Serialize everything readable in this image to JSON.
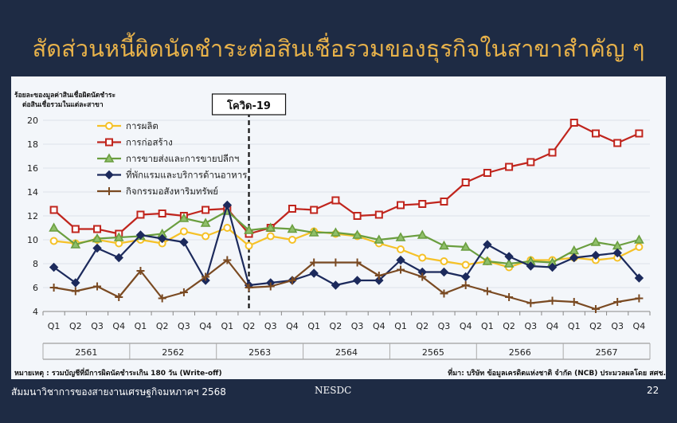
{
  "slide": {
    "title": "สัดส่วนหนี้ผิดนัดชำระต่อสินเชื่อรวมของธุรกิจในสาขาสำคัญ ๆ",
    "footer_left": "สัมมนาวิชาการของสายงานเศรษฐกิจมหภาคฯ 2568",
    "footer_center": "NESDC",
    "page_number": "22",
    "note": "หมายเหตุ : รวมบัญชีที่มีการผิดนัดชำระเกิน 180 วัน (Write-off)",
    "source": "ที่มา: บริษัท ข้อมูลเครดิตแห่งชาติ จำกัด (NCB) ประมวลผลโดย สศช."
  },
  "colors": {
    "background": "#1e2b44",
    "title": "#e8b24a",
    "panel": "#f3f6fa",
    "grid": "#dde3ea"
  },
  "chart_data": {
    "type": "line",
    "ylabel_lines": [
      "ร้อยละของมูลค่าสินเชื่อผิดนัดชำระ",
      "ต่อสินเชื่อรวมในแต่ละสาขา"
    ],
    "ylim": [
      4,
      20
    ],
    "yticks": [
      4,
      6,
      8,
      10,
      12,
      14,
      16,
      18,
      20
    ],
    "grid": true,
    "legend_position": "top-left",
    "quarters": [
      "Q1",
      "Q2",
      "Q3",
      "Q4",
      "Q1",
      "Q2",
      "Q3",
      "Q4",
      "Q1",
      "Q2",
      "Q3",
      "Q4",
      "Q1",
      "Q2",
      "Q3",
      "Q4",
      "Q1",
      "Q2",
      "Q3",
      "Q4",
      "Q1",
      "Q2",
      "Q3",
      "Q4",
      "Q1",
      "Q2",
      "Q3",
      "Q4"
    ],
    "years": [
      "2561",
      "2562",
      "2563",
      "2564",
      "2565",
      "2566",
      "2567"
    ],
    "annotation": {
      "label": "โควิด-19",
      "after_index": 9
    },
    "series": [
      {
        "name": "การผลิต",
        "color": "#f5c127",
        "marker": "circle",
        "values": [
          9.9,
          9.7,
          10.0,
          9.7,
          10.0,
          9.7,
          10.7,
          10.3,
          11.0,
          9.5,
          10.3,
          10.0,
          10.7,
          10.5,
          10.3,
          9.7,
          9.2,
          8.5,
          8.2,
          7.9,
          8.2,
          7.7,
          8.3,
          8.3,
          8.5,
          8.3,
          8.5,
          9.4
        ]
      },
      {
        "name": "การก่อสร้าง",
        "color": "#c0251d",
        "marker": "square",
        "values": [
          12.5,
          10.9,
          10.9,
          10.5,
          12.1,
          12.2,
          12.0,
          12.5,
          12.6,
          10.5,
          11.0,
          12.6,
          12.5,
          13.3,
          12.0,
          12.1,
          12.9,
          13.0,
          13.2,
          14.8,
          15.6,
          16.1,
          16.5,
          17.3,
          19.8,
          18.9,
          18.1,
          18.9
        ]
      },
      {
        "name": "การขายส่งและการขายปลีกฯ",
        "color": "#6a9e3f",
        "marker": "triangle",
        "values": [
          11.0,
          9.6,
          10.1,
          10.2,
          10.3,
          10.5,
          11.8,
          11.4,
          12.4,
          10.8,
          11.0,
          10.9,
          10.6,
          10.6,
          10.4,
          10.0,
          10.2,
          10.4,
          9.5,
          9.4,
          8.2,
          8.0,
          8.2,
          8.1,
          9.1,
          9.8,
          9.5,
          10.0
        ]
      },
      {
        "name": "ที่พักแรมและบริการด้านอาหาร",
        "color": "#1c2a5c",
        "marker": "diamond",
        "values": [
          7.7,
          6.4,
          9.3,
          8.5,
          10.4,
          10.1,
          9.8,
          6.6,
          12.9,
          6.2,
          6.4,
          6.6,
          7.2,
          6.2,
          6.6,
          6.6,
          8.3,
          7.3,
          7.3,
          6.9,
          9.6,
          8.6,
          7.8,
          7.7,
          8.5,
          8.7,
          8.9,
          6.8
        ]
      },
      {
        "name": "กิจกรรมอสังหาริมทรัพย์",
        "color": "#7a4a22",
        "marker": "cross",
        "values": [
          6.0,
          5.7,
          6.1,
          5.2,
          7.4,
          5.1,
          5.6,
          6.9,
          8.3,
          6.0,
          6.1,
          6.6,
          8.1,
          8.1,
          8.1,
          7.0,
          7.5,
          6.9,
          5.5,
          6.2,
          5.7,
          5.2,
          4.7,
          4.9,
          4.8,
          4.2,
          4.8,
          5.1
        ]
      }
    ]
  }
}
